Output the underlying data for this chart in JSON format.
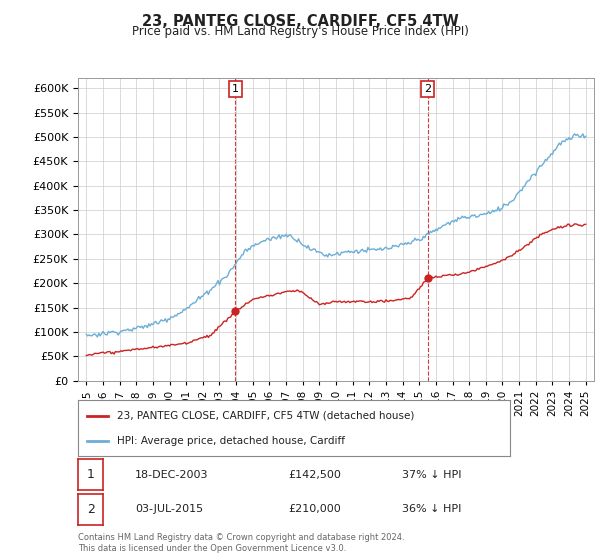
{
  "title": "23, PANTEG CLOSE, CARDIFF, CF5 4TW",
  "subtitle": "Price paid vs. HM Land Registry's House Price Index (HPI)",
  "hpi_color": "#6baed6",
  "price_color": "#cc2222",
  "vline_color": "#cc2222",
  "background_color": "#ffffff",
  "plot_bg_color": "#ffffff",
  "ylim": [
    0,
    620000
  ],
  "yticks": [
    0,
    50000,
    100000,
    150000,
    200000,
    250000,
    300000,
    350000,
    400000,
    450000,
    500000,
    550000,
    600000
  ],
  "xlim": [
    1994.5,
    2025.5
  ],
  "purchases": [
    {
      "date_num": 2003.96,
      "price": 142500,
      "label": "1",
      "date_str": "18-DEC-2003",
      "pct": "37% ↓ HPI"
    },
    {
      "date_num": 2015.5,
      "price": 210000,
      "label": "2",
      "date_str": "03-JUL-2015",
      "pct": "36% ↓ HPI"
    }
  ],
  "legend_label_price": "23, PANTEG CLOSE, CARDIFF, CF5 4TW (detached house)",
  "legend_label_hpi": "HPI: Average price, detached house, Cardiff",
  "footnote": "Contains HM Land Registry data © Crown copyright and database right 2024.\nThis data is licensed under the Open Government Licence v3.0.",
  "hpi_anchors_x": [
    1995.0,
    1996.0,
    1997.0,
    1998.0,
    1999.0,
    2000.0,
    2001.0,
    2002.0,
    2003.5,
    2004.5,
    2005.5,
    2006.5,
    2007.0,
    2007.5,
    2008.5,
    2009.5,
    2010.5,
    2011.5,
    2012.5,
    2013.5,
    2014.5,
    2015.5,
    2016.5,
    2017.5,
    2018.5,
    2019.5,
    2020.5,
    2021.5,
    2022.5,
    2023.5,
    2024.5
  ],
  "hpi_anchors_y": [
    93000,
    97000,
    102000,
    108000,
    117000,
    130000,
    148000,
    175000,
    218000,
    265000,
    285000,
    295000,
    300000,
    295000,
    270000,
    258000,
    265000,
    268000,
    270000,
    275000,
    285000,
    300000,
    320000,
    335000,
    340000,
    348000,
    368000,
    410000,
    450000,
    490000,
    505000
  ],
  "price_anchors_x": [
    1995.0,
    1996.0,
    1997.0,
    1998.0,
    1999.5,
    2001.0,
    2002.5,
    2003.96,
    2005.0,
    2006.0,
    2007.0,
    2007.8,
    2009.0,
    2010.0,
    2011.0,
    2012.5,
    2013.5,
    2014.5,
    2015.5,
    2016.5,
    2017.5,
    2018.5,
    2019.5,
    2020.5,
    2021.5,
    2022.5,
    2023.5,
    2024.5
  ],
  "price_anchors_y": [
    53000,
    57000,
    60000,
    65000,
    70000,
    78000,
    95000,
    142500,
    168000,
    175000,
    183000,
    185000,
    157000,
    163000,
    163000,
    163000,
    165000,
    170000,
    210000,
    215000,
    218000,
    228000,
    240000,
    255000,
    278000,
    303000,
    315000,
    320000
  ]
}
